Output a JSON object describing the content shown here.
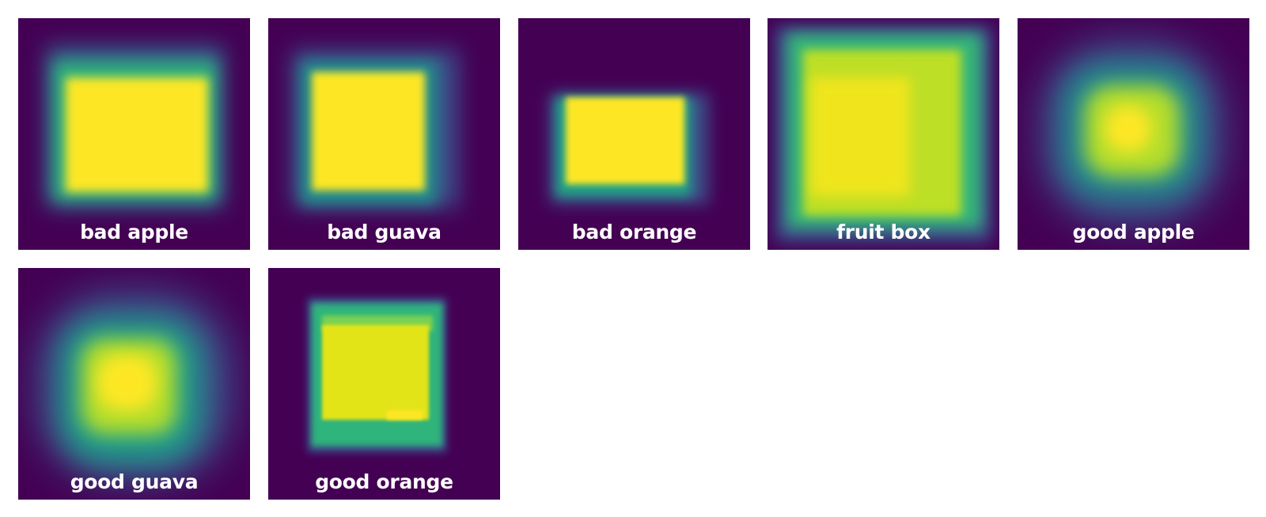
{
  "palette": {
    "background": "#440154",
    "low": "#3b528b",
    "mid": "#21918c",
    "high": "#fde725",
    "label_color": "#ffffff"
  },
  "tiles": [
    {
      "label": "bad apple"
    },
    {
      "label": "bad guava"
    },
    {
      "label": "bad orange"
    },
    {
      "label": "fruit box"
    },
    {
      "label": "good apple"
    },
    {
      "label": "good guava"
    },
    {
      "label": "good orange"
    }
  ]
}
